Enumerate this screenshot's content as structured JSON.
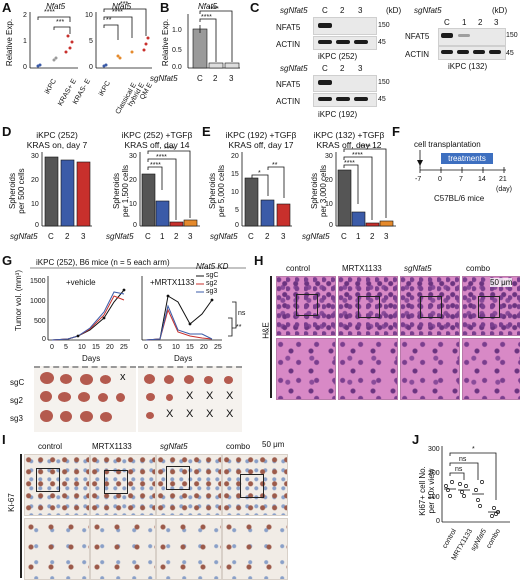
{
  "panels": {
    "A": "A",
    "B": "B",
    "C": "C",
    "D": "D",
    "E": "E",
    "F": "F",
    "G": "G",
    "H": "H",
    "I": "I",
    "J": "J"
  },
  "A": {
    "title": "Nfat5",
    "ylabel": "Relative Exp.",
    "left": {
      "cats": [
        "iKPC",
        "KRAS+ E",
        "KRAS- E"
      ],
      "sig": "****",
      "sig2": "***",
      "yticks": [
        "0",
        "1",
        "2"
      ]
    },
    "right": {
      "cats": [
        "iKPC",
        "Classical E",
        "hybrid E",
        "QM E"
      ],
      "sig": [
        "**",
        "****",
        "***"
      ],
      "yticks": [
        "0",
        "5",
        "10"
      ]
    }
  },
  "B": {
    "title": "Nfat5",
    "ylabel": "Relative Exp.",
    "xprefix": "sgNfat5",
    "cats": [
      "C",
      "2",
      "3"
    ],
    "sig": [
      "****",
      "****"
    ],
    "yticks": [
      "0.0",
      "0.5",
      "1.0"
    ],
    "chart_data": {
      "type": "bar",
      "categories": [
        "C",
        "2",
        "3"
      ],
      "values": [
        1.0,
        0.13,
        0.12
      ],
      "ylim": [
        0,
        1.3
      ]
    }
  },
  "C": {
    "sg": "sgNfat5",
    "kd": "(kD)",
    "b1": {
      "lanes": [
        "C",
        "2",
        "3"
      ],
      "label": "iKPC (252)",
      "rows": [
        "NFAT5",
        "ACTIN"
      ],
      "mw": [
        "150",
        "45"
      ]
    },
    "b2": {
      "lanes": [
        "C",
        "1",
        "2",
        "3"
      ],
      "label": "iKPC (132)",
      "rows": [
        "NFAT5",
        "ACTIN"
      ],
      "mw": [
        "150",
        "45"
      ]
    },
    "b3": {
      "lanes": [
        "C",
        "2",
        "3"
      ],
      "label": "iKPC (192)",
      "rows": [
        "NFAT5",
        "ACTIN"
      ],
      "mw": [
        "150",
        "45"
      ]
    }
  },
  "D": {
    "left": {
      "title": "iKPC (252)\nKRAS on, day 7",
      "ylabel": "Spheroids\nper 500 cells",
      "cats": [
        "C",
        "2",
        "3"
      ],
      "yticks": [
        "0",
        "10",
        "20",
        "30"
      ],
      "chart_data": {
        "type": "bar",
        "categories": [
          "C",
          "2",
          "3"
        ],
        "values": [
          25,
          24,
          23
        ],
        "ylim": [
          0,
          30
        ]
      }
    },
    "right": {
      "title": "iKPC (252) +TGFβ\nKRAS off, day 14",
      "ylabel": "Spheroids\nper 1,500 cells",
      "cats": [
        "C",
        "1",
        "2",
        "3"
      ],
      "yticks": [
        "0",
        "10",
        "20",
        "30"
      ],
      "sig": [
        "****",
        "****",
        "****"
      ],
      "chart_data": {
        "type": "bar",
        "categories": [
          "C",
          "1",
          "2",
          "3"
        ],
        "values": [
          25,
          12,
          2,
          3
        ],
        "ylim": [
          0,
          35
        ]
      }
    }
  },
  "E": {
    "left": {
      "title": "iKPC (192) +TGFβ\nKRAS off, day 17",
      "ylabel": "Spheroids\nper 5,000 cells",
      "cats": [
        "C",
        "2",
        "3"
      ],
      "yticks": [
        "0",
        "5",
        "10",
        "15",
        "20"
      ],
      "sig": [
        "*",
        "**"
      ],
      "chart_data": {
        "type": "bar",
        "categories": [
          "C",
          "2",
          "3"
        ],
        "values": [
          13,
          7,
          6
        ],
        "ylim": [
          0,
          20
        ]
      }
    },
    "right": {
      "title": "iKPC (132) +TGFβ\nKRAS off, day 12",
      "ylabel": "Spheroids\nper 3,000 cells",
      "cats": [
        "C",
        "1",
        "2",
        "3"
      ],
      "yticks": [
        "0",
        "10",
        "20",
        "30"
      ],
      "sig": [
        "****",
        "****",
        "****"
      ],
      "chart_data": {
        "type": "bar",
        "categories": [
          "C",
          "1",
          "2",
          "3"
        ],
        "values": [
          27,
          6,
          1,
          2
        ],
        "ylim": [
          0,
          35
        ]
      }
    }
  },
  "sg_axis": "sgNfat5",
  "F": {
    "label": "cell transplantation",
    "bar": "treatments",
    "ticks": [
      "-7",
      "0",
      "7",
      "14",
      "21"
    ],
    "unit": "(day)",
    "mice": "C57BL/6 mice"
  },
  "G": {
    "title": "iKPC (252), B6 mice (n = 5 each arm)",
    "kd": "Nfat5 KD",
    "ylabel": "Tumor vol. (mm³)",
    "xlabel": "Days",
    "left": {
      "label": "+vehicle"
    },
    "right": {
      "label": "+MRTX1133",
      "ns": "ns",
      "sig": "**"
    },
    "legend": [
      "sgC",
      "sg2",
      "sg3"
    ],
    "yticks": [
      "0",
      "500",
      "1000",
      "1500"
    ],
    "xticks": [
      "0",
      "5",
      "10",
      "15",
      "20",
      "25"
    ],
    "rows": [
      "sgC",
      "sg2",
      "sg3"
    ],
    "chart_data": [
      {
        "type": "line",
        "x": [
          0,
          5,
          7,
          10,
          14,
          17,
          21
        ],
        "series": [
          {
            "name": "sgC",
            "values": [
              0,
              20,
              80,
              180,
              420,
              800,
              1100
            ]
          },
          {
            "name": "sg2",
            "values": [
              0,
              15,
              60,
              170,
              500,
              950,
              900
            ]
          },
          {
            "name": "sg3",
            "values": [
              0,
              10,
              70,
              200,
              520,
              1000,
              1050
            ]
          }
        ]
      },
      {
        "type": "line",
        "x": [
          0,
          5,
          7,
          10,
          14,
          17,
          21
        ],
        "series": [
          {
            "name": "sgC",
            "values": [
              0,
              50,
              1200,
              900,
              300,
              700,
              1100
            ]
          },
          {
            "name": "sg2",
            "values": [
              0,
              40,
              700,
              200,
              150,
              100,
              0
            ]
          },
          {
            "name": "sg3",
            "values": [
              0,
              30,
              800,
              250,
              180,
              200,
              0
            ]
          }
        ]
      }
    ]
  },
  "H": {
    "cols": [
      "control",
      "MRTX1133",
      "sgNfat5",
      "combo"
    ],
    "side": "H&E",
    "scale": "50 μm"
  },
  "I": {
    "cols": [
      "control",
      "MRTX1133",
      "sgNfat5",
      "combo"
    ],
    "side": "Ki-67",
    "scale": "50 μm"
  },
  "J": {
    "ylabel": "Ki67+ cell No.\nper 10x view",
    "cats": [
      "control",
      "MRTX1133",
      "sgNfat5",
      "combo"
    ],
    "ns": [
      "ns",
      "ns"
    ],
    "sig": "*",
    "yticks": [
      "0",
      "100",
      "200",
      "300"
    ],
    "chart_data": {
      "type": "scatter",
      "categories": [
        "control",
        "MRTX1133",
        "sgNfat5",
        "combo"
      ],
      "values": [
        170,
        160,
        150,
        60
      ],
      "ylim": [
        0,
        300
      ]
    }
  },
  "colors": {
    "darkbar": "#555555",
    "blue": "#3b5ba8",
    "red": "#c8302c",
    "orange": "#e58a2c"
  }
}
